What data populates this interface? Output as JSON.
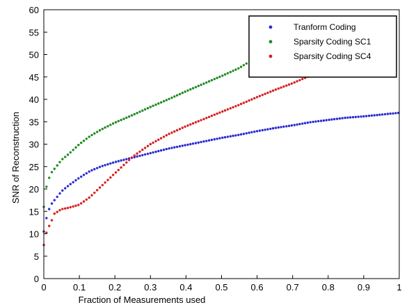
{
  "chart_data": {
    "type": "scatter",
    "xlabel": "Fraction of Measurements used",
    "ylabel": "SNR of Reconstruction",
    "xlim": [
      0,
      1
    ],
    "ylim": [
      0,
      60
    ],
    "xticks": [
      0,
      0.1,
      0.2,
      0.3,
      0.4,
      0.5,
      0.6,
      0.7,
      0.8,
      0.9,
      1
    ],
    "xtick_labels": [
      "0",
      "0.1",
      "0.2",
      "0.3",
      "0.4",
      "0.5",
      "0.6",
      "0.7",
      "0.8",
      "0.9",
      "1"
    ],
    "yticks": [
      0,
      5,
      10,
      15,
      20,
      25,
      30,
      35,
      40,
      45,
      50,
      55,
      60
    ],
    "ytick_labels": [
      "0",
      "5",
      "10",
      "15",
      "20",
      "25",
      "30",
      "35",
      "40",
      "45",
      "50",
      "55",
      "60"
    ],
    "grid": false,
    "legend_position": "top-right",
    "series": [
      {
        "name": "Tranform Coding",
        "color": "#2b2bd0",
        "x": [
          0,
          0.005,
          0.01,
          0.02,
          0.03,
          0.05,
          0.07,
          0.1,
          0.13,
          0.16,
          0.2,
          0.25,
          0.3,
          0.35,
          0.4,
          0.45,
          0.5,
          0.55,
          0.6,
          0.65,
          0.7,
          0.75,
          0.8,
          0.85,
          0.9,
          0.95,
          1.0
        ],
        "y": [
          10.5,
          12.5,
          14.5,
          16.5,
          17.5,
          19.5,
          20.8,
          22.5,
          24,
          25,
          26,
          27,
          28,
          29,
          29.8,
          30.6,
          31.4,
          32.1,
          32.9,
          33.6,
          34.2,
          34.9,
          35.4,
          35.9,
          36.2,
          36.6,
          37
        ]
      },
      {
        "name": "Sparsity Coding SC1",
        "color": "#1f8a1f",
        "x": [
          0,
          0.005,
          0.01,
          0.02,
          0.03,
          0.05,
          0.07,
          0.1,
          0.13,
          0.16,
          0.2,
          0.25,
          0.3,
          0.35,
          0.4,
          0.45,
          0.5,
          0.55,
          0.57
        ],
        "y": [
          16,
          19.5,
          21.5,
          23.5,
          24.5,
          26.5,
          27.8,
          30,
          31.8,
          33.2,
          34.8,
          36.5,
          38.3,
          40,
          41.8,
          43.5,
          45.2,
          47,
          48
        ]
      },
      {
        "name": "Sparsity Coding SC4",
        "color": "#d62020",
        "x": [
          0,
          0.005,
          0.01,
          0.02,
          0.03,
          0.05,
          0.07,
          0.1,
          0.13,
          0.16,
          0.2,
          0.25,
          0.3,
          0.35,
          0.4,
          0.45,
          0.5,
          0.55,
          0.6,
          0.65,
          0.7,
          0.75,
          0.8
        ],
        "y": [
          7.5,
          9.5,
          11,
          12.5,
          14.5,
          15.5,
          15.8,
          16.5,
          18.2,
          20.5,
          23.5,
          27.2,
          30,
          32.2,
          34,
          35.6,
          37.2,
          38.8,
          40.5,
          42.1,
          43.6,
          45.3,
          47
        ]
      }
    ]
  }
}
